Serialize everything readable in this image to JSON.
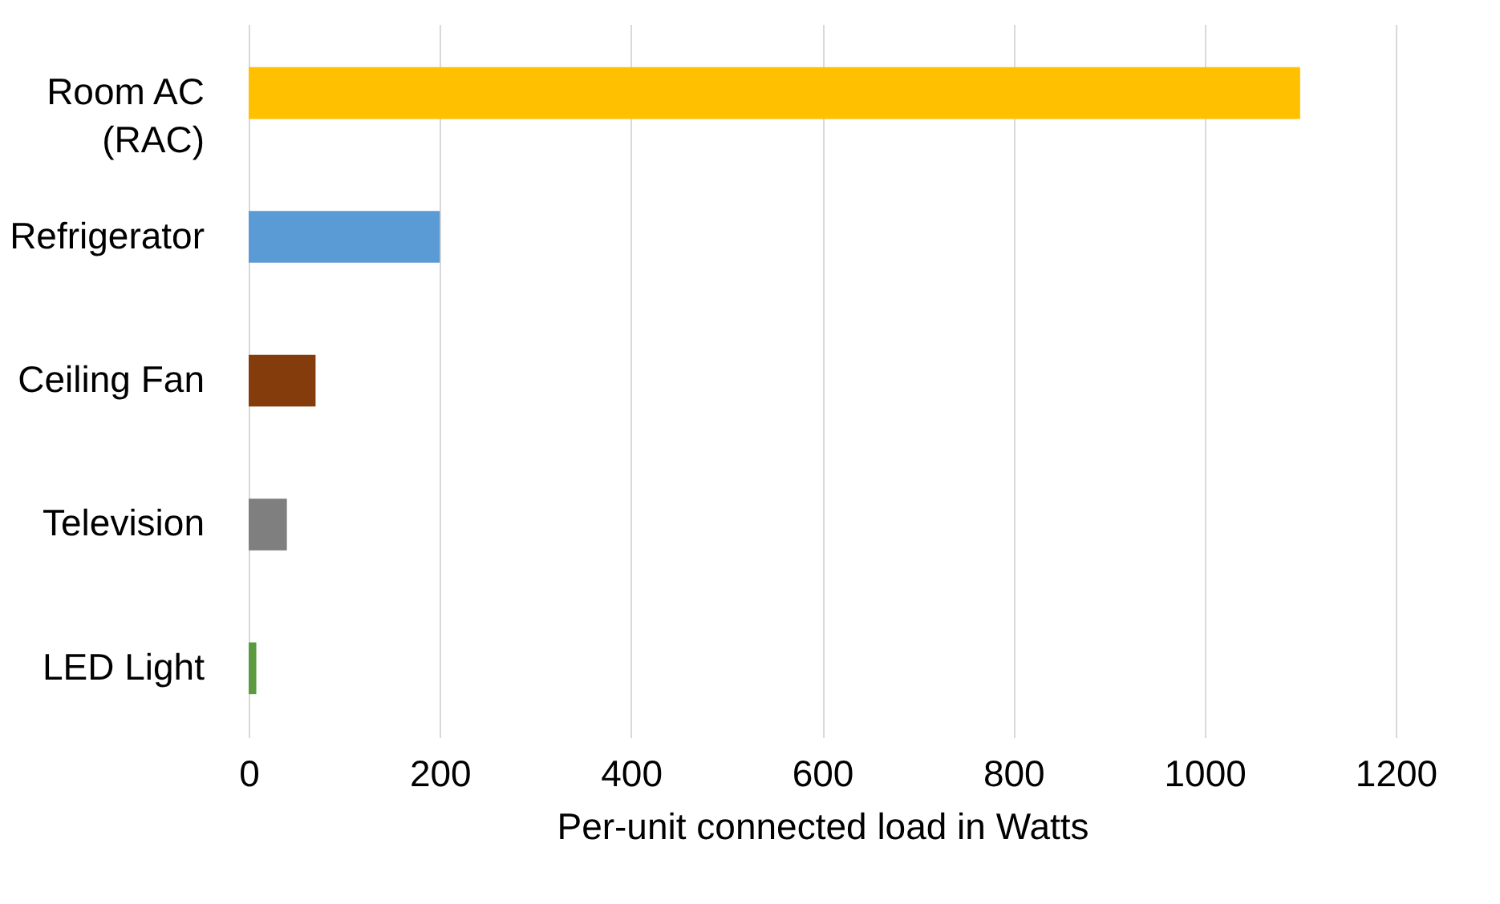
{
  "chart_data": {
    "type": "bar",
    "orientation": "horizontal",
    "xlabel": "Per-unit connected load in Watts",
    "categories": [
      "Room AC (RAC)",
      "Refrigerator",
      "Ceiling Fan",
      "Television",
      "LED Light"
    ],
    "values": [
      1100,
      200,
      70,
      40,
      8
    ],
    "colors": [
      "#ffc000",
      "#5b9bd5",
      "#843c0c",
      "#7f7f7f",
      "#5b9a3e"
    ],
    "xlim": [
      0,
      1200
    ],
    "xticks": [
      0,
      200,
      400,
      600,
      800,
      1000,
      1200
    ],
    "grid": "x"
  }
}
